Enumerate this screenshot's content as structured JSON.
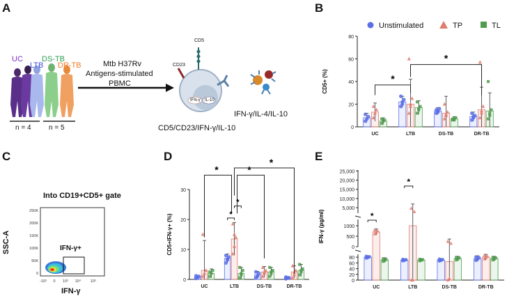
{
  "colors": {
    "uns": "#5b6ee8",
    "tp": "#e07b6e",
    "tl": "#4f9c4f",
    "uns_fill": "#c9d2fb",
    "tp_fill": "#f6cfca",
    "tl_fill": "#c9e6c9",
    "uc": "#7a2fc9",
    "ltb": "#3a4fe0",
    "dstb": "#2e9e54",
    "drtb": "#f07a21"
  },
  "panels": {
    "A": {
      "letter": "A",
      "groups": {
        "uc": "UC",
        "ltb": "LTB",
        "dstb": "DS-TB",
        "drtb": "DR-TB"
      },
      "n1": "n = 4",
      "n2": "n = 5",
      "stim": [
        "Mtb H37Rv",
        "Antigens-stimulated",
        "PBMC"
      ],
      "markers": {
        "cd5": "CD5",
        "cd23": "CD23",
        "ifn": "IFN-γ",
        "il10": "IL-10"
      },
      "caption_cell": "CD5/CD23/IFN-γ/IL-10",
      "caption_cyto": "IFN-γ/IL-4/IL-10"
    },
    "B": {
      "letter": "B"
    },
    "C": {
      "letter": "C",
      "title": "Into CD19+CD5+ gate",
      "ylabel": "SSC-A",
      "xlabel": "IFN-γ",
      "gate": "IFN-γ+",
      "yticks": [
        "250K",
        "200K",
        "150K",
        "100K",
        "50K",
        "0"
      ],
      "xticks": [
        "-10³",
        "0",
        "10³",
        "10⁴",
        "10⁵"
      ]
    },
    "D": {
      "letter": "D"
    },
    "E": {
      "letter": "E"
    }
  },
  "legend": {
    "uns": "Unstimulated",
    "tp": "TP",
    "tl": "TL"
  },
  "chart_data": [
    {
      "id": "B",
      "type": "bar",
      "ylabel": "CD5+ (%)",
      "ylim": [
        0,
        80
      ],
      "yticks": [
        "0",
        "20",
        "40",
        "60",
        "80"
      ],
      "categories": [
        "UC",
        "LTB",
        "DS-TB",
        "DR-TB"
      ],
      "series": [
        {
          "name": "Unstimulated",
          "values": [
            8,
            22,
            14,
            9
          ],
          "err": [
            4,
            5,
            3,
            4
          ],
          "points": [
            [
              5,
              7,
              9,
              11
            ],
            [
              18,
              20,
              24,
              27,
              22
            ],
            [
              12,
              14,
              16,
              15,
              13
            ],
            [
              6,
              8,
              10,
              12,
              9
            ]
          ]
        },
        {
          "name": "TP",
          "values": [
            13,
            20,
            12,
            15
          ],
          "err": [
            8,
            22,
            15,
            20
          ],
          "points": [
            [
              8,
              12,
              15,
              18
            ],
            [
              12,
              18,
              25,
              60,
              20
            ],
            [
              7,
              10,
              13,
              20,
              11
            ],
            [
              8,
              12,
              18,
              57,
              14
            ]
          ]
        },
        {
          "name": "TL",
          "values": [
            5,
            17,
            7,
            14
          ],
          "err": [
            3,
            6,
            2,
            16
          ],
          "points": [
            [
              3,
              5,
              6,
              7
            ],
            [
              12,
              15,
              18,
              22,
              16
            ],
            [
              6,
              7,
              8,
              7,
              6
            ],
            [
              7,
              10,
              15,
              40,
              12
            ]
          ]
        }
      ],
      "brackets": [
        {
          "from": 0,
          "to": 1,
          "label": "*"
        },
        {
          "from": 1,
          "to": 3,
          "label": "*"
        }
      ]
    },
    {
      "id": "D",
      "type": "bar",
      "ylabel": "CD5+IFN-γ+ (%)",
      "ylim": [
        0,
        30
      ],
      "yticks": [
        "0",
        "10",
        "20",
        "30"
      ],
      "categories": [
        "UC",
        "LTB",
        "DS-TB",
        "DR-TB"
      ],
      "series": [
        {
          "name": "Unstimulated",
          "values": [
            0.8,
            7,
            1.5,
            0.5
          ],
          "err": [
            0.6,
            1.5,
            1.2,
            0.3
          ],
          "points": [
            [
              0.3,
              0.6,
              1,
              1.2
            ],
            [
              5.5,
              6.5,
              7.5,
              8,
              6.8
            ],
            [
              0.5,
              1,
              2,
              2.5,
              1.2
            ],
            [
              0.2,
              0.4,
              0.6,
              0.8,
              0.5
            ]
          ]
        },
        {
          "name": "TP",
          "values": [
            3,
            13.5,
            2.5,
            2.5
          ],
          "err": [
            10,
            5.5,
            1.8,
            2
          ],
          "points": [
            [
              1,
              2,
              3,
              15
            ],
            [
              8.5,
              11,
              14,
              18.5,
              15
            ],
            [
              1,
              2,
              3,
              4,
              2.5
            ],
            [
              0.5,
              1.5,
              3,
              4.5,
              2.2
            ]
          ]
        },
        {
          "name": "TL",
          "values": [
            2,
            2,
            2.5,
            3
          ],
          "err": [
            1.5,
            2,
            1.5,
            2
          ],
          "points": [
            [
              1,
              2,
              3,
              2.5
            ],
            [
              0.5,
              1.5,
              3,
              4,
              2
            ],
            [
              1,
              2,
              3,
              4,
              2.5
            ],
            [
              1.5,
              2.5,
              3.5,
              5,
              3
            ]
          ]
        }
      ],
      "brackets": [
        {
          "from": 0,
          "to": 1,
          "label": "*",
          "level": 1
        },
        {
          "from": 1,
          "to": 2,
          "label": "*",
          "level": 2
        },
        {
          "from": 1,
          "to": 3,
          "label": "*",
          "level": 3
        },
        {
          "from": 1.0,
          "to": 1.0,
          "label": "*",
          "level": 0,
          "note": "LTB Unstimulated vs TP"
        },
        {
          "from": 1.0,
          "to": 1.0,
          "label": "*",
          "level": 0,
          "note": "LTB TP vs TL"
        }
      ]
    },
    {
      "id": "E",
      "type": "bar",
      "ylabel": "IFN-γ (pg/ml)",
      "axis_break": true,
      "ytick_segments": [
        [
          "0",
          "20",
          "40",
          "60",
          "80"
        ],
        [
          "0",
          "500",
          "1000"
        ],
        [
          "5,000",
          "10,000",
          "15,000",
          "20,000",
          "25,000"
        ]
      ],
      "categories": [
        "UC",
        "LTB",
        "DS-TB",
        "DR-TB"
      ],
      "series": [
        {
          "name": "Unstimulated",
          "values": [
            80,
            70,
            70,
            75
          ],
          "err": [
            5,
            4,
            5,
            10
          ]
        },
        {
          "name": "TP",
          "values": [
            700,
            1000,
            65,
            80
          ],
          "err": [
            150,
            6000,
            300,
            10
          ]
        },
        {
          "name": "TL",
          "values": [
            70,
            70,
            75,
            75
          ],
          "err": [
            8,
            5,
            8,
            8
          ]
        }
      ],
      "brackets": [
        {
          "group": 0,
          "label": "*"
        },
        {
          "group": 1,
          "label": "*"
        }
      ]
    }
  ]
}
